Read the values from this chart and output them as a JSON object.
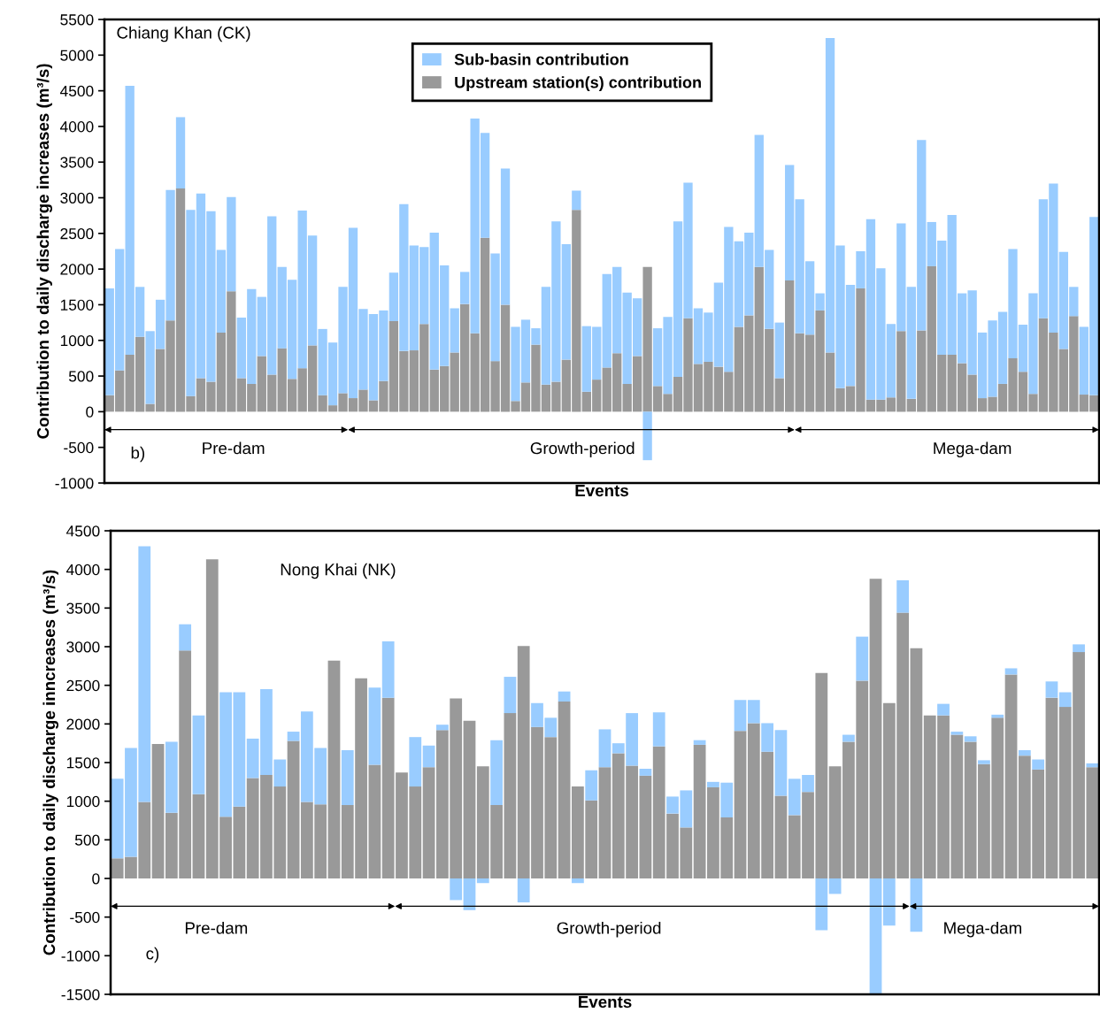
{
  "chart_data": [
    {
      "type": "bar",
      "stacked": true,
      "title": "Chiang Khan (CK)",
      "xlabel": "Events",
      "ylabel": "Contribution to daily discharge increases (m³/s)",
      "categories": [
        null,
        null,
        null,
        null,
        null,
        null,
        null,
        null,
        null,
        null,
        null,
        null,
        null,
        null,
        null,
        null,
        null,
        null,
        null,
        null,
        null,
        null,
        null,
        null,
        null,
        null,
        null,
        null,
        null,
        null,
        null,
        null,
        null,
        null,
        null,
        null,
        null,
        null,
        null,
        null,
        null,
        null,
        null,
        null,
        null,
        null,
        null,
        null,
        null,
        null,
        null,
        null,
        null,
        null,
        null,
        null,
        null,
        null,
        null,
        null,
        null,
        null,
        null,
        null,
        null,
        null,
        null,
        null,
        null,
        null,
        null,
        null,
        null,
        null,
        null,
        null,
        null,
        null,
        null,
        null,
        null,
        null,
        null,
        null,
        null,
        null,
        null,
        null,
        null,
        null,
        null,
        null,
        null,
        null,
        null,
        null,
        null,
        null
      ],
      "series": [
        {
          "name": "Upstream station(s) contribution",
          "color": "#999999",
          "values": [
            230,
            580,
            800,
            1050,
            110,
            880,
            1280,
            3130,
            220,
            470,
            420,
            1110,
            1690,
            470,
            390,
            780,
            520,
            890,
            460,
            610,
            930,
            230,
            90,
            260,
            190,
            310,
            160,
            430,
            1270,
            850,
            860,
            1230,
            590,
            640,
            830,
            1510,
            1100,
            2440,
            710,
            1500,
            150,
            410,
            940,
            380,
            420,
            730,
            2830,
            280,
            450,
            620,
            820,
            390,
            780,
            2030,
            360,
            250,
            490,
            1310,
            670,
            700,
            630,
            560,
            1190,
            1350,
            2030,
            1160,
            470,
            1840,
            1100,
            1080,
            1420,
            830,
            330,
            360,
            1730,
            170,
            170,
            200,
            1130,
            180,
            1140,
            2040,
            800,
            800,
            680,
            520,
            190,
            210,
            390,
            750,
            560,
            250,
            1310,
            1110,
            880,
            1340,
            240,
            230
          ]
        },
        {
          "name": "Sub-basin contribution",
          "color": "#99ccff",
          "values": [
            1500,
            1700,
            3770,
            700,
            1020,
            690,
            1830,
            1000,
            2610,
            2590,
            2390,
            1160,
            1320,
            850,
            1330,
            830,
            2220,
            1140,
            1390,
            2210,
            1540,
            930,
            880,
            1490,
            2390,
            1130,
            1210,
            990,
            680,
            2060,
            1470,
            1080,
            1920,
            1410,
            620,
            450,
            3010,
            1470,
            1510,
            1910,
            1040,
            880,
            230,
            1370,
            2250,
            1620,
            270,
            920,
            740,
            1310,
            1210,
            1280,
            810,
            -680,
            810,
            1080,
            2180,
            1900,
            780,
            690,
            1180,
            2030,
            1200,
            1160,
            1850,
            1110,
            780,
            1620,
            1880,
            1030,
            240,
            4410,
            2000,
            1420,
            520,
            2530,
            1840,
            1030,
            1510,
            1570,
            2670,
            620,
            1600,
            1960,
            980,
            1180,
            920,
            1070,
            1010,
            1530,
            660,
            1410,
            1670,
            2090,
            1360,
            410,
            950,
            2500
          ]
        }
      ],
      "ylim": [
        -1000,
        5500
      ],
      "yticks": [
        -1000,
        -500,
        0,
        500,
        1000,
        1500,
        2000,
        2500,
        3000,
        3500,
        4000,
        4500,
        5000,
        5500
      ],
      "annotations": [
        "b)",
        "Pre-dam",
        "Growth-period",
        "Mega-dam"
      ],
      "legend": "top",
      "grid": false,
      "tick_labels": "y"
    },
    {
      "type": "bar",
      "stacked": true,
      "title": "Nong Khai (NK)",
      "xlabel": "Events",
      "ylabel": "Contribution to daily discharge inncreases (m³/s)",
      "categories": [
        null,
        null,
        null,
        null,
        null,
        null,
        null,
        null,
        null,
        null,
        null,
        null,
        null,
        null,
        null,
        null,
        null,
        null,
        null,
        null,
        null,
        null,
        null,
        null,
        null,
        null,
        null,
        null,
        null,
        null,
        null,
        null,
        null,
        null,
        null,
        null,
        null,
        null,
        null,
        null,
        null,
        null,
        null,
        null,
        null,
        null,
        null,
        null,
        null,
        null,
        null,
        null,
        null,
        null,
        null,
        null,
        null,
        null,
        null,
        null,
        null,
        null,
        null,
        null,
        null,
        null,
        null,
        null,
        null,
        null,
        null,
        null,
        null
      ],
      "series": [
        {
          "color": "#999999",
          "values": [
            260,
            280,
            990,
            1740,
            850,
            2950,
            1090,
            4130,
            800,
            930,
            1300,
            1340,
            1190,
            1780,
            990,
            960,
            2820,
            950,
            2590,
            1470,
            2340,
            1370,
            1190,
            1440,
            1920,
            2330,
            2040,
            1450,
            950,
            2140,
            3010,
            1960,
            1830,
            2290,
            1190,
            1010,
            1440,
            1620,
            1460,
            1330,
            1710,
            840,
            660,
            1730,
            1180,
            790,
            1910,
            2010,
            1640,
            1070,
            820,
            1120,
            2660,
            1450,
            1770,
            2560,
            3880,
            2270,
            3440,
            2980,
            2110,
            2110,
            1860,
            1770,
            1480,
            2080,
            2640,
            1590,
            1410,
            2340,
            2220,
            2930,
            1440
          ]
        },
        {
          "color": "#99ccff",
          "values": [
            1030,
            1410,
            3310,
            null,
            920,
            340,
            1020,
            null,
            1610,
            1480,
            510,
            1110,
            350,
            120,
            1170,
            730,
            null,
            710,
            null,
            1000,
            730,
            null,
            640,
            280,
            70,
            -280,
            -410,
            -60,
            840,
            470,
            -310,
            310,
            250,
            130,
            -60,
            390,
            490,
            130,
            680,
            90,
            440,
            220,
            480,
            60,
            70,
            450,
            400,
            300,
            370,
            850,
            470,
            220,
            -670,
            -200,
            90,
            570,
            -1490,
            -610,
            420,
            -690,
            null,
            150,
            40,
            70,
            50,
            40,
            80,
            70,
            130,
            210,
            190,
            100,
            50
          ]
        }
      ],
      "ylim": [
        -1500,
        4500
      ],
      "yticks": [
        -1500,
        -1000,
        -500,
        0,
        500,
        1000,
        1500,
        2000,
        2500,
        3000,
        3500,
        4000,
        4500
      ],
      "annotations": [
        "c)",
        "Pre-dam",
        "Growth-period",
        "Mega-dam"
      ],
      "legend": false,
      "grid": false,
      "tick_labels": "y"
    }
  ]
}
